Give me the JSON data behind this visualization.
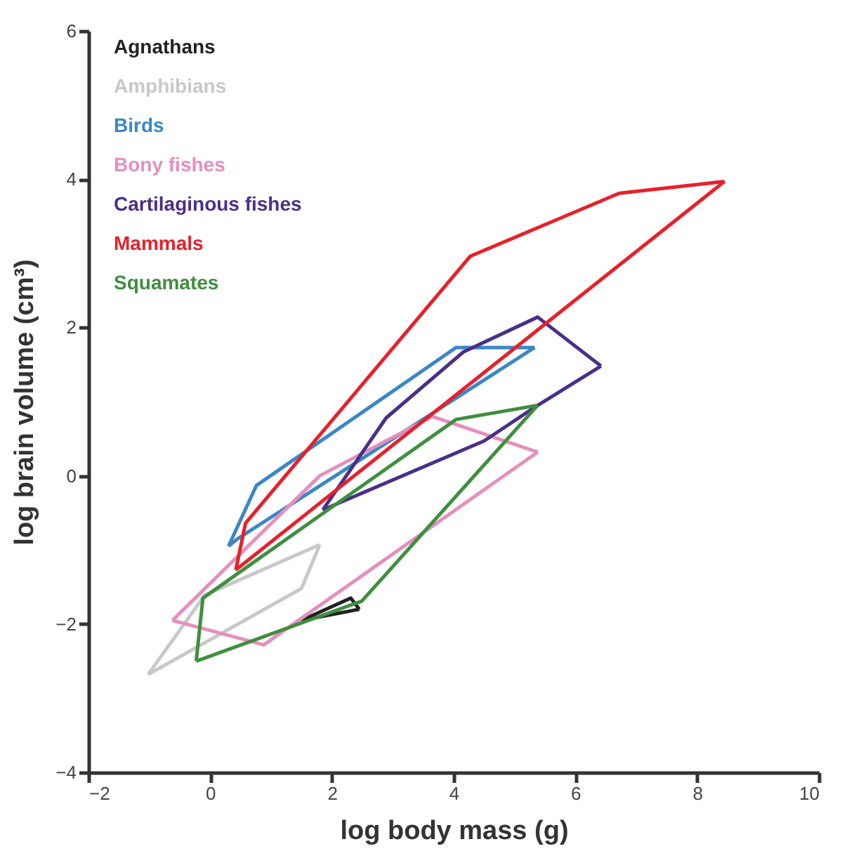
{
  "chart_data": {
    "type": "line",
    "xlabel": "log body mass (g)",
    "ylabel": "log brain volume (cm³)",
    "xlim": [
      -2,
      10
    ],
    "ylim": [
      -4,
      6
    ],
    "xticks": [
      -2,
      0,
      2,
      4,
      6,
      8,
      10
    ],
    "yticks": [
      -4,
      -2,
      0,
      2,
      4,
      6
    ],
    "grid": false,
    "marker": "none",
    "line_style": "solid",
    "series": [
      {
        "name": "Agnathans",
        "color": "#222222",
        "x": [
          1.5,
          2.31,
          2.45
        ],
        "values": [
          -1.95,
          -1.65,
          -1.8
        ]
      },
      {
        "color": "#222222",
        "x": [
          1.5,
          2.45
        ],
        "values": [
          -1.95,
          -1.8
        ]
      },
      {
        "name": "Amphibians",
        "color": "#c8c8c8",
        "x": [
          -1.02,
          -0.09,
          1.8
        ],
        "values": [
          -2.68,
          -1.61,
          -0.93
        ]
      },
      {
        "color": "#c8c8c8",
        "x": [
          -1.02,
          1.5,
          1.8
        ],
        "values": [
          -2.68,
          -1.52,
          -0.93
        ]
      },
      {
        "name": "Birds",
        "color": "#3a87c8",
        "x": [
          0.3,
          0.76,
          4.04,
          5.33
        ],
        "values": [
          -0.95,
          -0.13,
          1.73,
          1.73
        ]
      },
      {
        "color": "#3a87c8",
        "x": [
          0.3,
          0.45,
          5.33
        ],
        "values": [
          -0.95,
          -0.85,
          1.73
        ]
      },
      {
        "name": "Bony fishes",
        "color": "#e58fbd",
        "x": [
          -0.62,
          1.8,
          3.65,
          5.38
        ],
        "values": [
          -1.95,
          0.0,
          0.8,
          0.32
        ]
      },
      {
        "color": "#e58fbd",
        "x": [
          -0.62,
          0.88,
          5.38
        ],
        "values": [
          -1.95,
          -2.28,
          0.32
        ]
      },
      {
        "name": "Cartilaginous fishes",
        "color": "#4b2e8a",
        "x": [
          1.85,
          2.89,
          4.16,
          5.38,
          6.42
        ],
        "values": [
          -0.46,
          0.78,
          1.67,
          2.14,
          1.48
        ]
      },
      {
        "color": "#4b2e8a",
        "x": [
          1.85,
          4.5,
          5.38,
          6.42
        ],
        "values": [
          -0.46,
          0.47,
          0.95,
          1.48
        ]
      },
      {
        "name": "Mammals",
        "color": "#e8202a",
        "x": [
          0.42,
          0.58,
          4.27,
          6.72,
          8.45
        ],
        "values": [
          -1.27,
          -0.64,
          2.96,
          3.81,
          3.97
        ]
      },
      {
        "color": "#e8202a",
        "x": [
          0.42,
          8.45
        ],
        "values": [
          -1.27,
          3.97
        ]
      },
      {
        "name": "Squamates",
        "color": "#3e8f3e",
        "x": [
          -0.23,
          -0.12,
          4.04,
          5.38
        ],
        "values": [
          -2.5,
          -1.65,
          0.76,
          0.95
        ]
      },
      {
        "color": "#3e8f3e",
        "x": [
          -0.23,
          2.49,
          5.38
        ],
        "values": [
          -2.5,
          -1.69,
          0.95
        ]
      }
    ]
  }
}
